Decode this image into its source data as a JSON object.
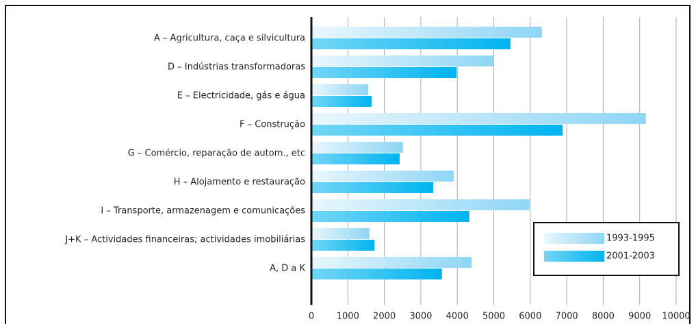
{
  "chart_data": {
    "type": "barh",
    "categories": [
      "A – Agricultura, caça e silvicultura",
      "D – Indústrias transformadoras",
      "E – Electricidade, gás e água",
      "F – Construção",
      "G – Comércio, reparação de autom., etc",
      "H – Alojamento e restauração",
      "I – Transporte, armazenagem e comunicações",
      "J+K – Actividades financeiras; actividades imobiliárias",
      "A, D a K"
    ],
    "series": [
      {
        "name": "1993-1995",
        "color": "#8fd5f5",
        "values": [
          6320,
          5010,
          1560,
          9170,
          2510,
          3900,
          5980,
          1590,
          4390
        ]
      },
      {
        "name": "2001-2003",
        "color": "#00b4ef",
        "values": [
          5460,
          3980,
          1650,
          6890,
          2420,
          3340,
          4330,
          1730,
          3580
        ]
      }
    ],
    "xlim": [
      0,
      10000
    ],
    "xticks": [
      0,
      1000,
      2000,
      3000,
      4000,
      5000,
      6000,
      7000,
      8000,
      9000,
      10000
    ],
    "grid": true,
    "legend": "lower right"
  }
}
